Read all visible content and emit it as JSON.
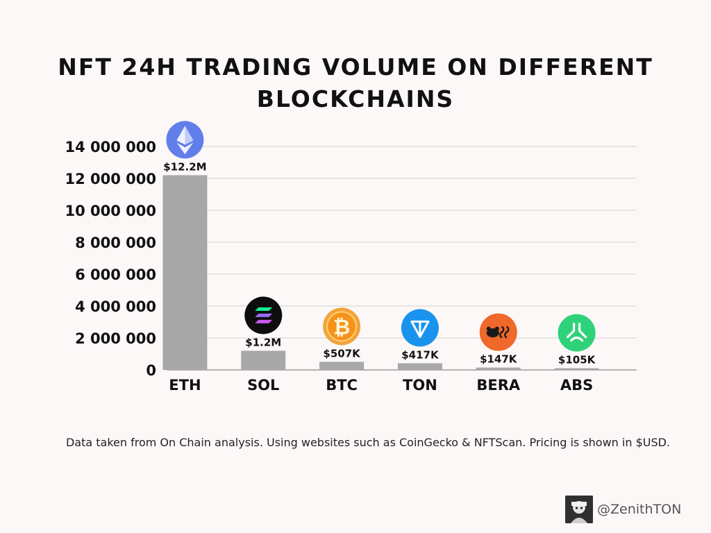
{
  "title_lines": [
    "NFT 24H TRADING VOLUME ON DIFFERENT",
    "BLOCKCHAINS"
  ],
  "footnote": "Data taken from On Chain analysis. Using websites such as CoinGecko & NFTScan. Pricing is shown in $USD.",
  "author": {
    "handle": "@ZenithTON"
  },
  "chart_data": {
    "type": "bar",
    "title": "NFT 24H TRADING VOLUME ON DIFFERENT BLOCKCHAINS",
    "xlabel": "",
    "ylabel": "",
    "ylim": [
      0,
      14000000
    ],
    "yticks": [
      0,
      2000000,
      4000000,
      6000000,
      8000000,
      10000000,
      12000000,
      14000000
    ],
    "ytick_labels": [
      "0",
      "2 000 000",
      "4 000 000",
      "6 000 000",
      "8 000 000",
      "10 000 000",
      "12 000 000",
      "14 000 000"
    ],
    "grid": true,
    "bar_color": "#a8a8a8",
    "categories": [
      "ETH",
      "SOL",
      "BTC",
      "TON",
      "BERA",
      "ABS"
    ],
    "values": [
      12200000,
      1200000,
      507000,
      417000,
      147000,
      105000
    ],
    "data_labels": [
      "$12.2M",
      "$1.2M",
      "$507K",
      "$417K",
      "$147K",
      "$105K"
    ],
    "icons": [
      "ethereum-logo-icon",
      "solana-logo-icon",
      "bitcoin-logo-icon",
      "ton-logo-icon",
      "berachain-logo-icon",
      "abstract-logo-icon"
    ]
  }
}
